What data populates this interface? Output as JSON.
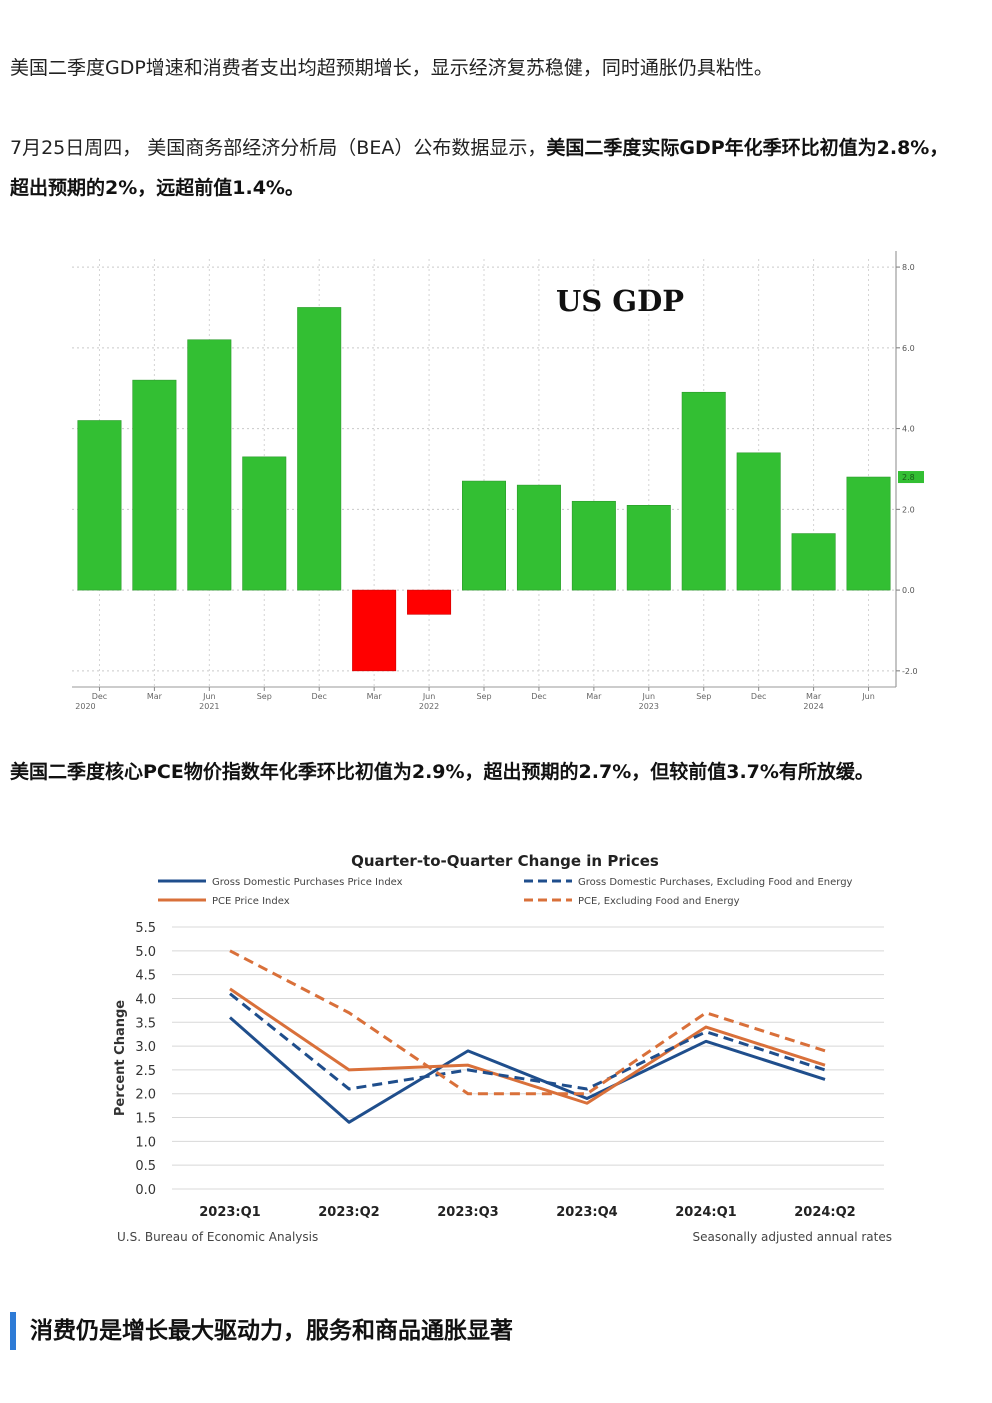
{
  "article": {
    "p1": "美国二季度GDP增速和消费者支出均超预期增长，显示经济复苏稳健，同时通胀仍具粘性。",
    "p2_lead": "7月25日周四， 美国商务部经济分析局（BEA）公布数据显示，",
    "p2_bold": "美国二季度实际GDP年化季环比初值为2.8%，超出预期的2%，远超前值1.4%。",
    "p3": "美国二季度核心PCE物价指数年化季环比初值为2.9%，超出预期的2.7%，但较前值3.7%有所放缓。",
    "section_heading": "消费仍是增长最大驱动力，服务和商品通胀显著"
  },
  "colors": {
    "positive_bar": "#33bf33",
    "negative_bar": "#ff0000",
    "latest_badge": "#33bf33",
    "heading_accent": "#2e7bd6",
    "navy": "#1f4e8c",
    "orange": "#d9703a"
  },
  "chart_data": [
    {
      "type": "bar",
      "title": "US GDP",
      "categories": [
        "Dec 2020",
        "Mar 2021",
        "Jun 2021",
        "Sep 2021",
        "Dec 2021",
        "Mar 2022",
        "Jun 2022",
        "Sep 2022",
        "Dec 2022",
        "Mar 2023",
        "Jun 2023",
        "Sep 2023",
        "Dec 2023",
        "Mar 2024",
        "Jun 2024"
      ],
      "values": [
        4.2,
        5.2,
        6.2,
        3.3,
        7.0,
        -2.0,
        -0.6,
        2.7,
        2.6,
        2.2,
        2.1,
        4.9,
        3.4,
        1.4,
        2.8
      ],
      "x_tick_labels": [
        {
          "m": "Dec",
          "y": "2020"
        },
        {
          "m": "Mar",
          "y": ""
        },
        {
          "m": "Jun",
          "y": "2021"
        },
        {
          "m": "Sep",
          "y": ""
        },
        {
          "m": "Dec",
          "y": ""
        },
        {
          "m": "Mar",
          "y": ""
        },
        {
          "m": "Jun",
          "y": "2022"
        },
        {
          "m": "Sep",
          "y": ""
        },
        {
          "m": "Dec",
          "y": ""
        },
        {
          "m": "Mar",
          "y": ""
        },
        {
          "m": "Jun",
          "y": "2023"
        },
        {
          "m": "Sep",
          "y": ""
        },
        {
          "m": "Dec",
          "y": ""
        },
        {
          "m": "Mar",
          "y": "2024"
        },
        {
          "m": "Jun",
          "y": ""
        }
      ],
      "yticks": [
        "8.0",
        "6.0",
        "4.0",
        "2.0",
        "0.0",
        "-2.0"
      ],
      "ylim": [
        -2.4,
        8.2
      ],
      "latest_label": "2.8",
      "grid": true,
      "axis_side": "right"
    },
    {
      "type": "line",
      "title": "Quarter-to-Quarter Change in Prices",
      "ylabel": "Percent Change",
      "categories": [
        "2023:Q1",
        "2023:Q2",
        "2023:Q3",
        "2023:Q4",
        "2024:Q1",
        "2024:Q2"
      ],
      "yticks": [
        "5.5",
        "5.0",
        "4.5",
        "4.0",
        "3.5",
        "3.0",
        "2.5",
        "2.0",
        "1.5",
        "1.0",
        "0.5",
        "0.0"
      ],
      "ylim": [
        0,
        5.5
      ],
      "series": [
        {
          "name": "Gross Domestic Purchases Price Index",
          "values": [
            3.6,
            1.4,
            2.9,
            1.9,
            3.1,
            2.3
          ],
          "color": "#1f4e8c",
          "dash": "solid"
        },
        {
          "name": "PCE Price Index",
          "values": [
            4.2,
            2.5,
            2.6,
            1.8,
            3.4,
            2.6
          ],
          "color": "#d9703a",
          "dash": "solid"
        },
        {
          "name": "Gross Domestic Purchases, Excluding Food and Energy",
          "values": [
            4.1,
            2.1,
            2.5,
            2.1,
            3.3,
            2.5
          ],
          "color": "#1f4e8c",
          "dash": "dashed"
        },
        {
          "name": "PCE, Excluding Food and Energy",
          "values": [
            5.0,
            3.7,
            2.0,
            2.0,
            3.7,
            2.9
          ],
          "color": "#d9703a",
          "dash": "dashed"
        }
      ],
      "source": "U.S. Bureau of Economic Analysis",
      "note": "Seasonally adjusted annual rates",
      "legend_position": "top"
    }
  ]
}
